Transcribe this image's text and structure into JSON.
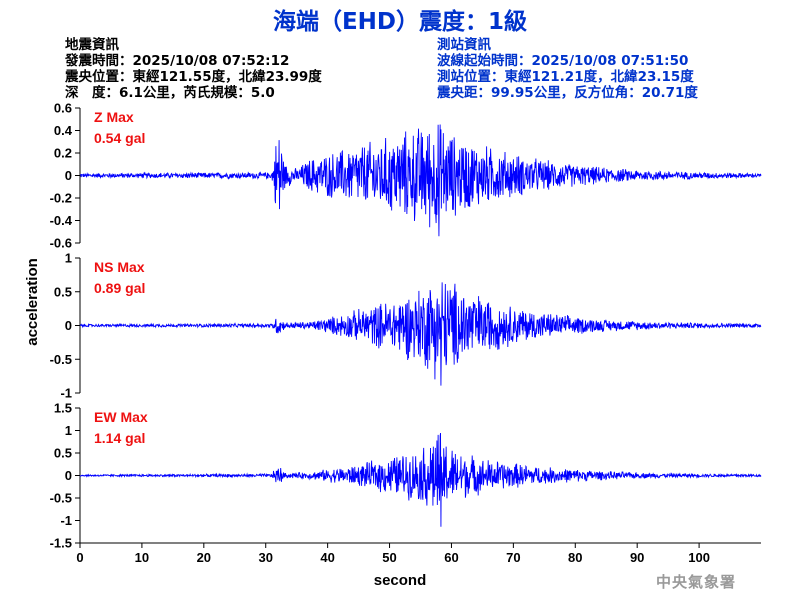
{
  "header": {
    "title": "海端（EHD）震度：1級"
  },
  "earthquake_info": {
    "heading": "地震資訊",
    "origin_time": "發震時間：2025/10/08 07:52:12",
    "epicenter": "震央位置：東經121.55度，北緯23.99度",
    "depth_magnitude": "深　度：6.1公里，芮氏規模：5.0"
  },
  "station_info": {
    "heading": "測站資訊",
    "wave_start": "波線起始時間：2025/10/08 07:51:50",
    "location": "測站位置：東經121.21度，北緯23.15度",
    "distance": "震央距：99.95公里，反方位角：20.71度"
  },
  "footer": {
    "agency": "中央氣象署"
  },
  "colors": {
    "title": "#0033cc",
    "trace": "#0000ff",
    "max_label": "#ee1111",
    "agency": "#9a9a9a"
  },
  "chart_data": [
    {
      "type": "line",
      "component": "Z",
      "label_line1": "Z Max",
      "label_line2": "0.54 gal",
      "peak": 0.54,
      "ylim": [
        -0.6,
        0.6
      ],
      "yticks": [
        -0.6,
        -0.4,
        -0.2,
        0,
        0.2,
        0.4,
        0.6
      ],
      "ytick_labels": [
        "-0.6",
        "-0.4",
        "-0.2",
        "0",
        "0.2",
        "0.4",
        "0.6"
      ],
      "xlim": [
        0,
        110
      ],
      "envelope": [
        [
          0,
          0.02
        ],
        [
          31,
          0.03
        ],
        [
          31.6,
          0.3
        ],
        [
          32.2,
          0.5
        ],
        [
          33,
          0.12
        ],
        [
          35,
          0.06
        ],
        [
          37,
          0.15
        ],
        [
          40,
          0.2
        ],
        [
          45,
          0.28
        ],
        [
          50,
          0.35
        ],
        [
          55,
          0.45
        ],
        [
          58,
          0.5
        ],
        [
          60,
          0.38
        ],
        [
          65,
          0.28
        ],
        [
          70,
          0.2
        ],
        [
          75,
          0.14
        ],
        [
          80,
          0.1
        ],
        [
          85,
          0.07
        ],
        [
          90,
          0.05
        ],
        [
          95,
          0.04
        ],
        [
          100,
          0.03
        ],
        [
          110,
          0.02
        ]
      ]
    },
    {
      "type": "line",
      "component": "NS",
      "label_line1": "NS Max",
      "label_line2": "0.89 gal",
      "peak": 0.89,
      "ylim": [
        -1,
        1
      ],
      "yticks": [
        -1,
        -0.5,
        0,
        0.5,
        1
      ],
      "ytick_labels": [
        "-1",
        "-0.5",
        "0",
        "0.5",
        "1"
      ],
      "xlim": [
        0,
        110
      ],
      "envelope": [
        [
          0,
          0.02
        ],
        [
          31,
          0.03
        ],
        [
          31.6,
          0.12
        ],
        [
          32.2,
          0.18
        ],
        [
          33,
          0.05
        ],
        [
          37,
          0.06
        ],
        [
          40,
          0.12
        ],
        [
          45,
          0.25
        ],
        [
          50,
          0.4
        ],
        [
          55,
          0.6
        ],
        [
          58,
          0.85
        ],
        [
          60,
          0.7
        ],
        [
          65,
          0.45
        ],
        [
          70,
          0.3
        ],
        [
          75,
          0.2
        ],
        [
          80,
          0.14
        ],
        [
          85,
          0.09
        ],
        [
          90,
          0.07
        ],
        [
          95,
          0.05
        ],
        [
          100,
          0.04
        ],
        [
          110,
          0.03
        ]
      ]
    },
    {
      "type": "line",
      "component": "EW",
      "label_line1": "EW Max",
      "label_line2": "1.14 gal",
      "peak": 1.14,
      "ylim": [
        -1.5,
        1.5
      ],
      "yticks": [
        -1.5,
        -1,
        -0.5,
        0,
        0.5,
        1,
        1.5
      ],
      "ytick_labels": [
        "-1.5",
        "-1",
        "-0.5",
        "0",
        "0.5",
        "1",
        "1.5"
      ],
      "xlim": [
        0,
        110
      ],
      "envelope": [
        [
          0,
          0.02
        ],
        [
          31,
          0.04
        ],
        [
          31.6,
          0.2
        ],
        [
          32.2,
          0.25
        ],
        [
          33,
          0.06
        ],
        [
          37,
          0.08
        ],
        [
          40,
          0.15
        ],
        [
          45,
          0.25
        ],
        [
          50,
          0.45
        ],
        [
          55,
          0.6
        ],
        [
          58,
          1.1
        ],
        [
          60,
          0.65
        ],
        [
          65,
          0.4
        ],
        [
          70,
          0.3
        ],
        [
          75,
          0.2
        ],
        [
          80,
          0.15
        ],
        [
          85,
          0.1
        ],
        [
          90,
          0.07
        ],
        [
          95,
          0.05
        ],
        [
          100,
          0.04
        ],
        [
          110,
          0.03
        ]
      ]
    }
  ],
  "axes": {
    "xticks": [
      0,
      10,
      20,
      30,
      40,
      50,
      60,
      70,
      80,
      90,
      100
    ],
    "xtick_labels": [
      "0",
      "10",
      "20",
      "30",
      "40",
      "50",
      "60",
      "70",
      "80",
      "90",
      "100"
    ],
    "xlabel": "second",
    "ylabel": "acceleration"
  }
}
